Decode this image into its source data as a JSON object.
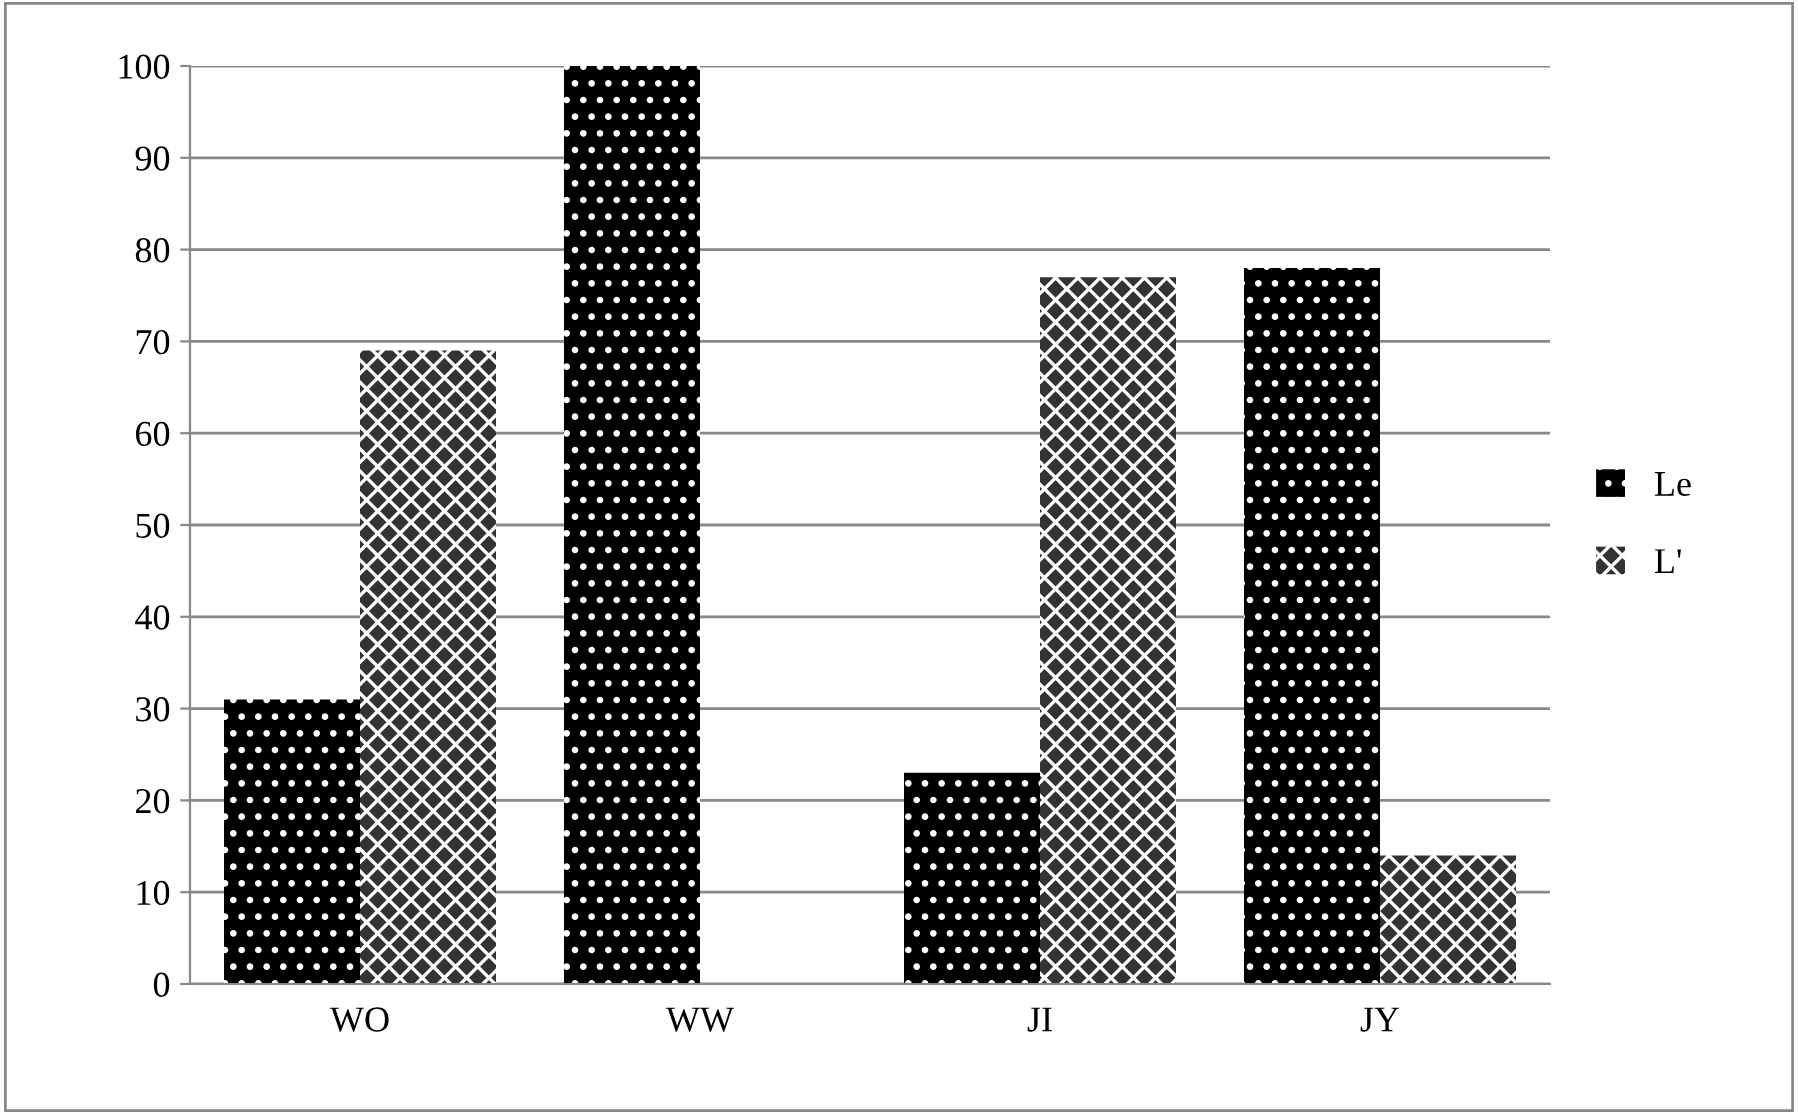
{
  "chart_data": {
    "type": "bar",
    "categories": [
      "WO",
      "WW",
      "JI",
      "JY"
    ],
    "series": [
      {
        "name": "Le",
        "color": "#000000",
        "values": [
          31,
          100,
          23,
          78
        ]
      },
      {
        "name": "L'",
        "color": "#333333",
        "values": [
          69,
          0,
          77,
          14
        ]
      }
    ],
    "ylim": [
      0,
      100
    ],
    "yticks": [
      0,
      10,
      20,
      30,
      40,
      50,
      60,
      70,
      80,
      90,
      100
    ],
    "grid": "y",
    "legend": "right"
  }
}
